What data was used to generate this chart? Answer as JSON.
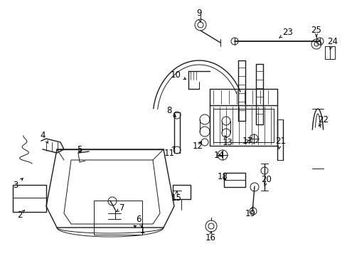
{
  "background_color": "#ffffff",
  "figsize": [
    4.89,
    3.6
  ],
  "dpi": 100,
  "line_color": "#1a1a1a",
  "text_color": "#000000",
  "font_size": 8.5,
  "font_size_small": 7.0
}
